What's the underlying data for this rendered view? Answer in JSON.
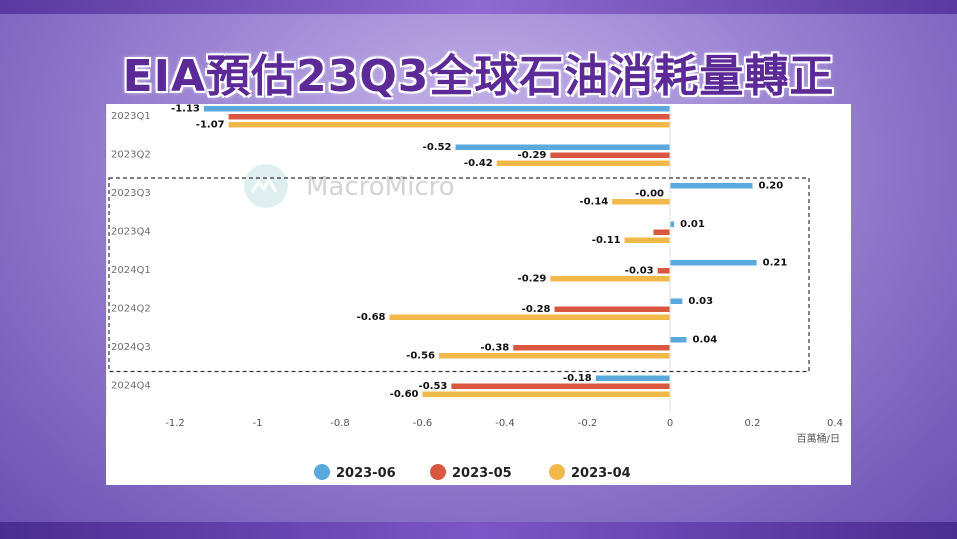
{
  "headline": "EIA預估23Q3全球石油消耗量轉正",
  "watermark": "MacroMicro",
  "colors": {
    "series_2023_06": "#5aa9dc",
    "series_2023_05": "#d9573f",
    "series_2023_04": "#f0b94a"
  },
  "chart_data": {
    "type": "bar",
    "orientation": "horizontal",
    "categories": [
      "2023Q1",
      "2023Q2",
      "2023Q3",
      "2023Q4",
      "2024Q1",
      "2024Q2",
      "2024Q3",
      "2024Q4"
    ],
    "series": [
      {
        "name": "2023-06",
        "values": [
          -1.13,
          -0.52,
          0.2,
          0.01,
          0.21,
          0.03,
          0.04,
          -0.18
        ],
        "labels": [
          "-1.13",
          "-0.52",
          "0.20",
          "0.01",
          "0.21",
          "0.03",
          "0.04",
          "-0.18"
        ]
      },
      {
        "name": "2023-05",
        "values": [
          -1.07,
          -0.29,
          -0.0,
          -0.04,
          -0.03,
          -0.28,
          -0.38,
          -0.53
        ],
        "labels": [
          "",
          "-0.29",
          "-0.00",
          "",
          "-0.03",
          "-0.28",
          "-0.38",
          "-0.53"
        ]
      },
      {
        "name": "2023-04",
        "values": [
          -1.07,
          -0.42,
          -0.14,
          -0.11,
          -0.29,
          -0.68,
          -0.56,
          -0.6
        ],
        "labels": [
          "-1.07",
          "-0.42",
          "-0.14",
          "-0.11",
          "-0.29",
          "-0.68",
          "-0.56",
          "-0.60"
        ]
      }
    ],
    "xticks": [
      "-1.2",
      "-1",
      "-0.8",
      "-0.6",
      "-0.4",
      "-0.2",
      "0",
      "0.2",
      "0.4"
    ],
    "xtick_values": [
      -1.2,
      -1,
      -0.8,
      -0.6,
      -0.4,
      -0.2,
      0,
      0.2,
      0.4
    ],
    "xlim": [
      -1.2,
      0.4
    ],
    "unit": "百萬桶/日",
    "highlight_categories": [
      "2023Q3",
      "2024Q3"
    ],
    "legend_position": "bottom"
  }
}
